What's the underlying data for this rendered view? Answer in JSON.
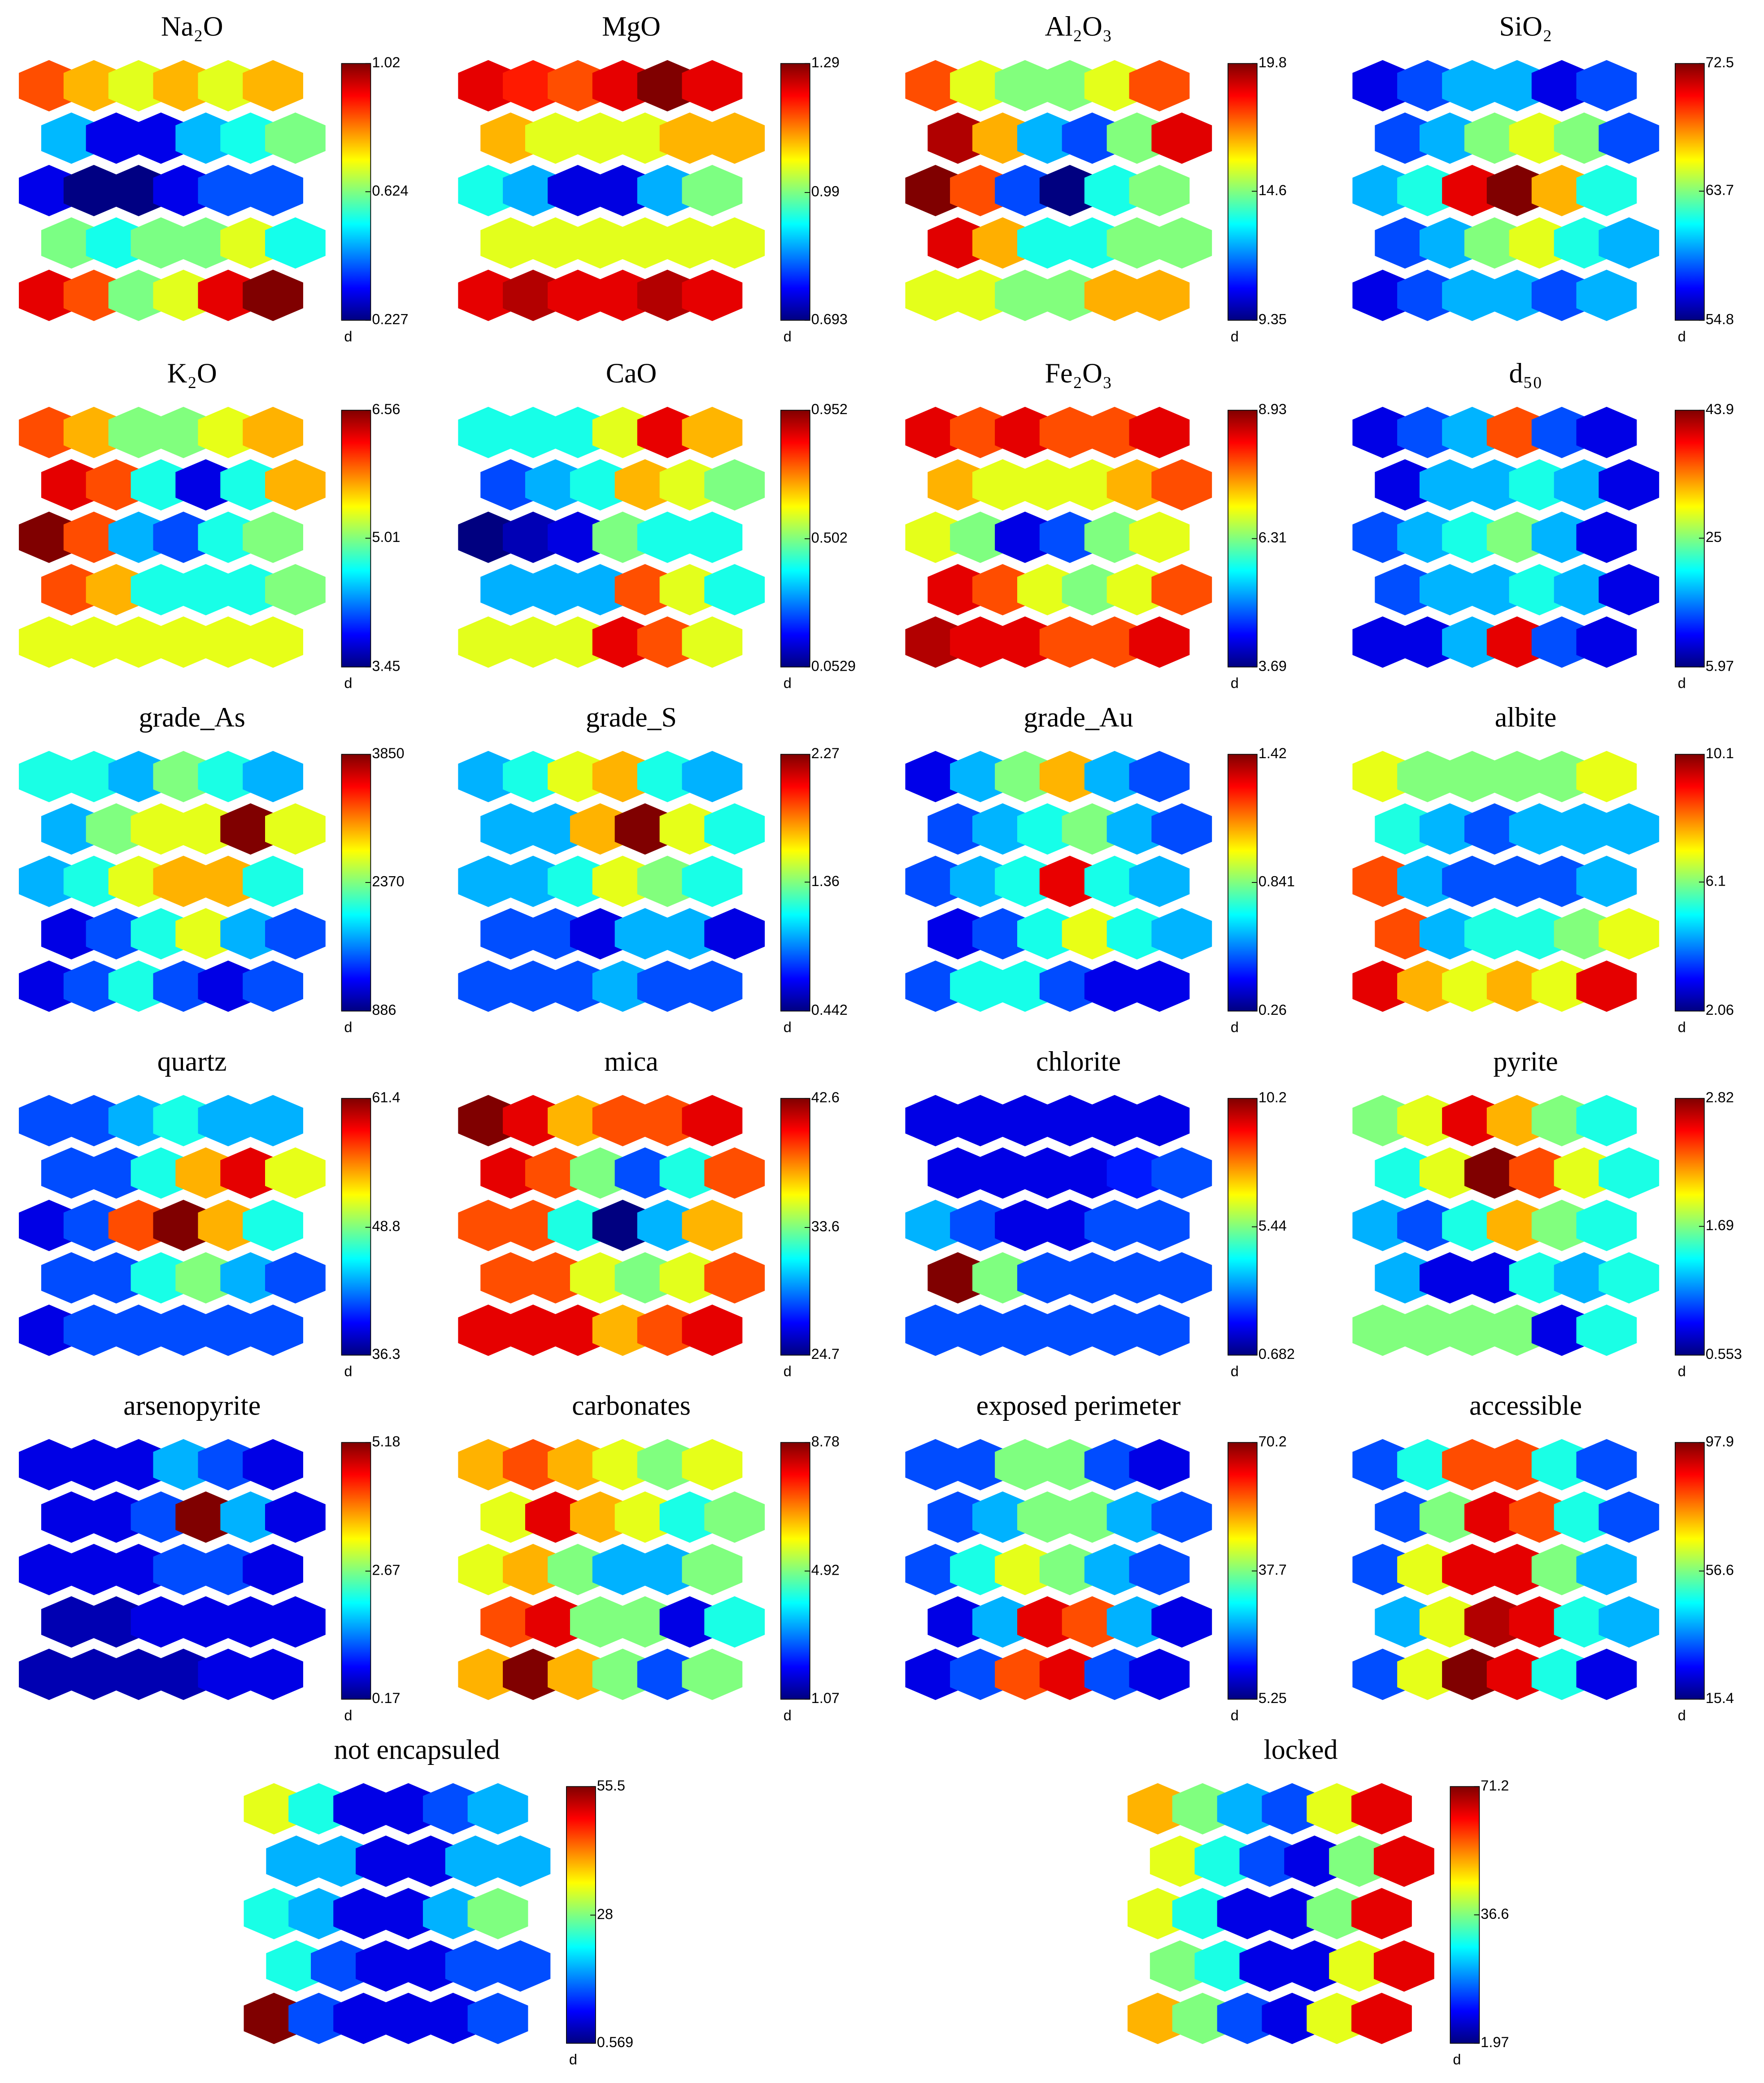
{
  "chart_data": [
    {
      "type": "heatmap",
      "title": "Na₂O",
      "colorbar_label": "d",
      "clim": [
        0.227,
        1.02
      ],
      "cticks": [
        0.227,
        0.624,
        1.02
      ],
      "values": [
        [
          0.86,
          0.78,
          0.7,
          0.78,
          0.7,
          0.78
        ],
        [
          0.47,
          0.31,
          0.31,
          0.47,
          0.54,
          0.62
        ],
        [
          0.31,
          0.23,
          0.23,
          0.31,
          0.39,
          0.39
        ],
        [
          0.62,
          0.54,
          0.62,
          0.62,
          0.7,
          0.54
        ],
        [
          0.94,
          0.86,
          0.62,
          0.7,
          0.94,
          1.02
        ]
      ]
    },
    {
      "type": "heatmap",
      "title": "MgO",
      "colorbar_label": "d",
      "clim": [
        0.693,
        1.29
      ],
      "cticks": [
        0.693,
        0.99,
        1.29
      ],
      "values": [
        [
          1.23,
          1.2,
          1.17,
          1.23,
          1.29,
          1.23
        ],
        [
          1.11,
          1.05,
          1.05,
          1.05,
          1.11,
          1.11
        ],
        [
          0.93,
          0.87,
          0.75,
          0.75,
          0.87,
          0.99
        ],
        [
          1.05,
          1.05,
          1.05,
          1.05,
          1.05,
          1.05
        ],
        [
          1.23,
          1.26,
          1.23,
          1.23,
          1.26,
          1.23
        ]
      ]
    },
    {
      "type": "heatmap",
      "title": "Al₂O₃",
      "colorbar_label": "d",
      "clim": [
        9.35,
        19.8
      ],
      "cticks": [
        9.35,
        14.6,
        19.8
      ],
      "values": [
        [
          17.7,
          15.6,
          14.6,
          14.6,
          15.6,
          17.7
        ],
        [
          19.3,
          16.7,
          12.5,
          11.4,
          14.6,
          18.8
        ],
        [
          19.8,
          17.7,
          11.4,
          9.35,
          13.5,
          14.6
        ],
        [
          18.8,
          16.7,
          13.5,
          13.5,
          14.6,
          14.6
        ],
        [
          15.6,
          15.6,
          14.6,
          14.6,
          16.7,
          16.7
        ]
      ]
    },
    {
      "type": "heatmap",
      "title": "SiO₂",
      "colorbar_label": "d",
      "clim": [
        54.8,
        72.5
      ],
      "cticks": [
        54.8,
        63.7,
        72.5
      ],
      "values": [
        [
          56.6,
          58.3,
          60.1,
          60.1,
          56.6,
          58.3
        ],
        [
          58.3,
          60.1,
          63.7,
          65.4,
          63.7,
          58.3
        ],
        [
          60.1,
          61.9,
          70.7,
          72.5,
          67.2,
          61.9
        ],
        [
          58.3,
          60.1,
          63.7,
          65.4,
          61.9,
          60.1
        ],
        [
          56.6,
          58.3,
          60.1,
          60.1,
          58.3,
          60.1
        ]
      ]
    },
    {
      "type": "heatmap",
      "title": "K₂O",
      "colorbar_label": "d",
      "clim": [
        3.45,
        6.56
      ],
      "cticks": [
        3.45,
        5.01,
        6.56
      ],
      "values": [
        [
          5.94,
          5.63,
          5.01,
          5.01,
          5.32,
          5.63
        ],
        [
          6.25,
          5.94,
          4.69,
          3.76,
          4.69,
          5.63
        ],
        [
          6.56,
          5.94,
          4.38,
          4.07,
          4.69,
          5.01
        ],
        [
          5.94,
          5.63,
          4.69,
          4.69,
          4.69,
          5.01
        ],
        [
          5.32,
          5.32,
          5.32,
          5.32,
          5.32,
          5.32
        ]
      ]
    },
    {
      "type": "heatmap",
      "title": "CaO",
      "colorbar_label": "d",
      "clim": [
        0.0529,
        0.952
      ],
      "cticks": [
        0.0529,
        0.502,
        0.952
      ],
      "values": [
        [
          0.41,
          0.41,
          0.41,
          0.59,
          0.86,
          0.68
        ],
        [
          0.23,
          0.32,
          0.41,
          0.68,
          0.59,
          0.5
        ],
        [
          0.0529,
          0.1,
          0.14,
          0.5,
          0.41,
          0.41
        ],
        [
          0.32,
          0.32,
          0.32,
          0.77,
          0.59,
          0.41
        ],
        [
          0.59,
          0.59,
          0.59,
          0.86,
          0.77,
          0.59
        ]
      ]
    },
    {
      "type": "heatmap",
      "title": "Fe₂O₃",
      "colorbar_label": "d",
      "clim": [
        3.69,
        8.93
      ],
      "cticks": [
        3.69,
        6.31,
        8.93
      ],
      "values": [
        [
          8.41,
          7.88,
          8.41,
          7.88,
          7.88,
          8.41
        ],
        [
          7.36,
          6.83,
          6.83,
          6.83,
          7.36,
          7.88
        ],
        [
          6.83,
          6.31,
          4.21,
          4.74,
          6.31,
          6.83
        ],
        [
          8.41,
          7.88,
          6.83,
          6.31,
          6.83,
          7.88
        ],
        [
          8.67,
          8.41,
          8.41,
          7.88,
          7.88,
          8.41
        ]
      ]
    },
    {
      "type": "heatmap",
      "title": "d₅₀",
      "colorbar_label": "d",
      "clim": [
        5.97,
        43.9
      ],
      "cticks": [
        5.97,
        25,
        43.9
      ],
      "values": [
        [
          9.8,
          13.6,
          17.4,
          36.3,
          13.6,
          9.8
        ],
        [
          9.8,
          17.4,
          17.4,
          21.1,
          17.4,
          9.8
        ],
        [
          13.6,
          17.4,
          21.1,
          25,
          17.4,
          9.8
        ],
        [
          13.6,
          17.4,
          17.4,
          21.1,
          17.4,
          9.8
        ],
        [
          9.8,
          9.8,
          17.4,
          40.1,
          13.6,
          9.8
        ]
      ]
    },
    {
      "type": "heatmap",
      "title": "grade_As",
      "colorbar_label": "d",
      "clim": [
        886,
        3850
      ],
      "cticks": [
        886,
        2370,
        3850
      ],
      "values": [
        [
          2072,
          2072,
          1775,
          2368,
          2072,
          1775
        ],
        [
          1775,
          2368,
          2664,
          2664,
          3850,
          2664
        ],
        [
          1775,
          2072,
          2664,
          2961,
          2961,
          2072
        ],
        [
          1182,
          1479,
          2072,
          2664,
          1775,
          1479
        ],
        [
          1182,
          1479,
          2072,
          1479,
          1182,
          1479
        ]
      ]
    },
    {
      "type": "heatmap",
      "title": "grade_S",
      "colorbar_label": "d",
      "clim": [
        0.442,
        2.27
      ],
      "cticks": [
        0.442,
        1.36,
        2.27
      ],
      "values": [
        [
          0.99,
          1.17,
          1.54,
          1.72,
          1.17,
          0.99
        ],
        [
          0.99,
          0.99,
          1.72,
          2.27,
          1.54,
          1.17
        ],
        [
          0.99,
          0.99,
          1.17,
          1.54,
          1.36,
          1.17
        ],
        [
          0.81,
          0.81,
          0.62,
          0.99,
          0.99,
          0.62
        ],
        [
          0.81,
          0.81,
          0.81,
          0.99,
          0.81,
          0.81
        ]
      ]
    },
    {
      "type": "heatmap",
      "title": "grade_Au",
      "colorbar_label": "d",
      "clim": [
        0.26,
        1.42
      ],
      "cticks": [
        0.26,
        0.841,
        1.42
      ],
      "values": [
        [
          0.38,
          0.61,
          0.84,
          1.07,
          0.61,
          0.49
        ],
        [
          0.49,
          0.61,
          0.72,
          0.84,
          0.61,
          0.49
        ],
        [
          0.49,
          0.61,
          0.72,
          1.3,
          0.72,
          0.61
        ],
        [
          0.38,
          0.49,
          0.72,
          0.96,
          0.72,
          0.61
        ],
        [
          0.49,
          0.72,
          0.72,
          0.49,
          0.38,
          0.38
        ]
      ]
    },
    {
      "type": "heatmap",
      "title": "albite",
      "colorbar_label": "d",
      "clim": [
        2.06,
        10.1
      ],
      "cticks": [
        2.06,
        6.1,
        10.1
      ],
      "values": [
        [
          6.9,
          6.1,
          6.1,
          6.1,
          6.1,
          6.9
        ],
        [
          5.3,
          4.5,
          3.7,
          4.5,
          4.5,
          4.5
        ],
        [
          8.5,
          4.5,
          3.7,
          3.7,
          3.7,
          4.5
        ],
        [
          8.5,
          4.5,
          5.3,
          5.3,
          6.1,
          6.9
        ],
        [
          9.3,
          7.7,
          6.9,
          7.7,
          6.9,
          9.3
        ]
      ]
    },
    {
      "type": "heatmap",
      "title": "quartz",
      "colorbar_label": "d",
      "clim": [
        36.3,
        61.4
      ],
      "cticks": [
        36.3,
        48.8,
        61.4
      ],
      "values": [
        [
          41.3,
          41.3,
          43.8,
          46.3,
          43.8,
          43.8
        ],
        [
          41.3,
          41.3,
          46.3,
          53.9,
          58.9,
          51.4
        ],
        [
          38.8,
          41.3,
          56.4,
          61.4,
          53.9,
          46.3
        ],
        [
          41.3,
          41.3,
          46.3,
          48.9,
          43.8,
          41.3
        ],
        [
          38.8,
          41.3,
          41.3,
          41.3,
          41.3,
          41.3
        ]
      ]
    },
    {
      "type": "heatmap",
      "title": "mica",
      "colorbar_label": "d",
      "clim": [
        24.7,
        42.6
      ],
      "cticks": [
        24.7,
        33.6,
        42.6
      ],
      "values": [
        [
          42.6,
          40.8,
          37.2,
          39,
          39,
          40.8
        ],
        [
          40.8,
          39,
          33.6,
          28.3,
          31.9,
          39
        ],
        [
          39,
          39,
          31.9,
          24.7,
          30.1,
          37.2
        ],
        [
          39,
          39,
          35.4,
          33.6,
          35.4,
          39
        ],
        [
          40.8,
          40.8,
          40.8,
          37.2,
          39,
          40.8
        ]
      ]
    },
    {
      "type": "heatmap",
      "title": "chlorite",
      "colorbar_label": "d",
      "clim": [
        0.682,
        10.2
      ],
      "cticks": [
        0.682,
        5.44,
        10.2
      ],
      "values": [
        [
          1.63,
          1.63,
          1.63,
          1.63,
          1.63,
          1.63
        ],
        [
          1.63,
          1.63,
          1.63,
          1.63,
          2.11,
          2.59
        ],
        [
          3.54,
          2.59,
          1.63,
          1.63,
          2.59,
          2.59
        ],
        [
          10.2,
          5.44,
          2.59,
          2.59,
          2.59,
          2.59
        ],
        [
          2.59,
          2.59,
          2.59,
          2.59,
          2.59,
          2.59
        ]
      ]
    },
    {
      "type": "heatmap",
      "title": "pyrite",
      "colorbar_label": "d",
      "clim": [
        0.553,
        2.82
      ],
      "cticks": [
        0.553,
        1.69,
        2.82
      ],
      "values": [
        [
          1.69,
          1.91,
          2.59,
          2.14,
          1.69,
          1.46
        ],
        [
          1.46,
          1.91,
          2.82,
          2.37,
          1.91,
          1.46
        ],
        [
          1.23,
          1.01,
          1.46,
          2.14,
          1.69,
          1.46
        ],
        [
          1.23,
          0.78,
          0.78,
          1.46,
          1.23,
          1.46
        ],
        [
          1.69,
          1.69,
          1.69,
          1.69,
          0.78,
          1.46
        ]
      ]
    },
    {
      "type": "heatmap",
      "title": "arsenopyrite",
      "colorbar_label": "d",
      "clim": [
        0.17,
        5.18
      ],
      "cticks": [
        0.17,
        2.67,
        5.18
      ],
      "values": [
        [
          0.67,
          0.67,
          0.67,
          1.67,
          1.17,
          0.67
        ],
        [
          0.67,
          0.67,
          1.17,
          5.18,
          1.67,
          0.67
        ],
        [
          0.67,
          0.67,
          0.67,
          1.17,
          1.17,
          0.67
        ],
        [
          0.42,
          0.42,
          0.67,
          0.67,
          0.67,
          0.67
        ],
        [
          0.42,
          0.42,
          0.42,
          0.42,
          0.67,
          0.67
        ]
      ]
    },
    {
      "type": "heatmap",
      "title": "carbonates",
      "colorbar_label": "d",
      "clim": [
        1.07,
        8.78
      ],
      "cticks": [
        1.07,
        4.92,
        8.78
      ],
      "values": [
        [
          6.47,
          7.24,
          6.47,
          5.7,
          4.93,
          5.7
        ],
        [
          5.7,
          8.01,
          6.47,
          5.7,
          4.15,
          4.93
        ],
        [
          5.7,
          6.47,
          4.93,
          3.38,
          3.38,
          4.93
        ],
        [
          7.24,
          8.01,
          4.93,
          4.93,
          1.84,
          4.15
        ],
        [
          6.47,
          8.78,
          6.47,
          4.93,
          2.61,
          4.93
        ]
      ]
    },
    {
      "type": "heatmap",
      "title": "exposed perimeter",
      "colorbar_label": "d",
      "clim": [
        5.25,
        70.2
      ],
      "cticks": [
        5.25,
        37.7,
        70.2
      ],
      "values": [
        [
          18.2,
          18.2,
          37.7,
          37.7,
          18.2,
          11.7
        ],
        [
          18.2,
          24.7,
          37.7,
          37.7,
          24.7,
          18.2
        ],
        [
          18.2,
          31.2,
          44.2,
          37.7,
          24.7,
          18.2
        ],
        [
          11.7,
          24.7,
          63.7,
          57.2,
          24.7,
          11.7
        ],
        [
          11.7,
          18.2,
          57.2,
          63.7,
          18.2,
          11.7
        ]
      ]
    },
    {
      "type": "heatmap",
      "title": "accessible",
      "colorbar_label": "d",
      "clim": [
        15.4,
        97.9
      ],
      "cticks": [
        15.4,
        56.6,
        97.9
      ],
      "values": [
        [
          31.9,
          48.4,
          81.4,
          81.4,
          48.4,
          31.9
        ],
        [
          31.9,
          56.6,
          89.7,
          81.4,
          48.4,
          31.9
        ],
        [
          31.9,
          64.9,
          89.7,
          89.7,
          56.6,
          40.2
        ],
        [
          40.2,
          64.9,
          93.8,
          89.7,
          48.4,
          40.2
        ],
        [
          31.9,
          64.9,
          97.9,
          89.7,
          48.4,
          23.7
        ]
      ]
    },
    {
      "type": "heatmap",
      "title": "not encapsuled",
      "colorbar_label": "d",
      "clim": [
        0.569,
        55.5
      ],
      "cticks": [
        0.569,
        28,
        55.5
      ],
      "values": [
        [
          33.5,
          22.5,
          6.1,
          6.1,
          11.6,
          17.0
        ],
        [
          17.0,
          17.0,
          6.1,
          6.1,
          17.0,
          17.0
        ],
        [
          22.5,
          17.0,
          6.1,
          6.1,
          17.0,
          28
        ],
        [
          22.5,
          11.6,
          6.1,
          6.1,
          11.6,
          11.6
        ],
        [
          55.5,
          11.6,
          6.1,
          6.1,
          6.1,
          11.6
        ]
      ]
    },
    {
      "type": "heatmap",
      "title": "locked",
      "colorbar_label": "d",
      "clim": [
        1.97,
        71.2
      ],
      "cticks": [
        1.97,
        36.6,
        71.2
      ],
      "values": [
        [
          50.4,
          36.6,
          22.7,
          15.8,
          43.5,
          64.3
        ],
        [
          43.5,
          29.7,
          15.8,
          8.9,
          36.6,
          64.3
        ],
        [
          43.5,
          29.7,
          8.9,
          8.9,
          36.6,
          64.3
        ],
        [
          36.6,
          29.7,
          8.9,
          8.9,
          43.5,
          64.3
        ],
        [
          50.4,
          36.6,
          15.8,
          8.9,
          43.5,
          64.3
        ]
      ]
    }
  ]
}
